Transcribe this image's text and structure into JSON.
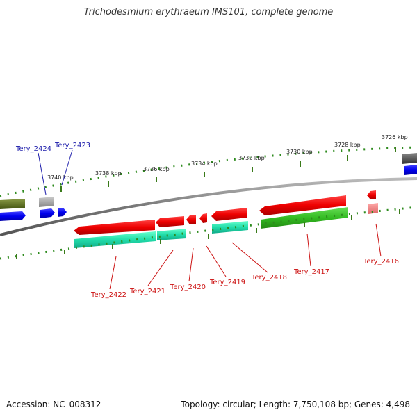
{
  "title": "Trichodesmium erythraeum IMS101, complete genome",
  "footer": {
    "accession": "Accession: NC_008312",
    "stats": "Topology: circular; Length: 7,750,108 bp; Genes: 4,498"
  },
  "colors": {
    "backbone": "#7a7a7a",
    "tick_major": "#3a7a1a",
    "tick_minor": "#2e8b1e",
    "forward_label": "#1a1aaa",
    "reverse_label": "#cc1111",
    "red_gene": "#ee0000",
    "green_gene": "#33bb22",
    "teal_gene": "#22ddaa",
    "blue_gene": "#0000ee",
    "olive_gene": "#667722",
    "grey_gene": "#aaaaaa",
    "darkgrey_gene": "#555555",
    "pink_gene": "#ee8888"
  },
  "scale_labels": [
    "3726 kbp",
    "3728 kbp",
    "3730 kbp",
    "3732 kbp",
    "3734 kbp",
    "3736 kbp",
    "3738 kbp",
    "3740 kbp"
  ],
  "forward_genes": [
    "Tery_2424",
    "Tery_2423"
  ],
  "reverse_genes": [
    "Tery_2422",
    "Tery_2421",
    "Tery_2420",
    "Tery_2419",
    "Tery_2418",
    "Tery_2417",
    "Tery_2416"
  ]
}
